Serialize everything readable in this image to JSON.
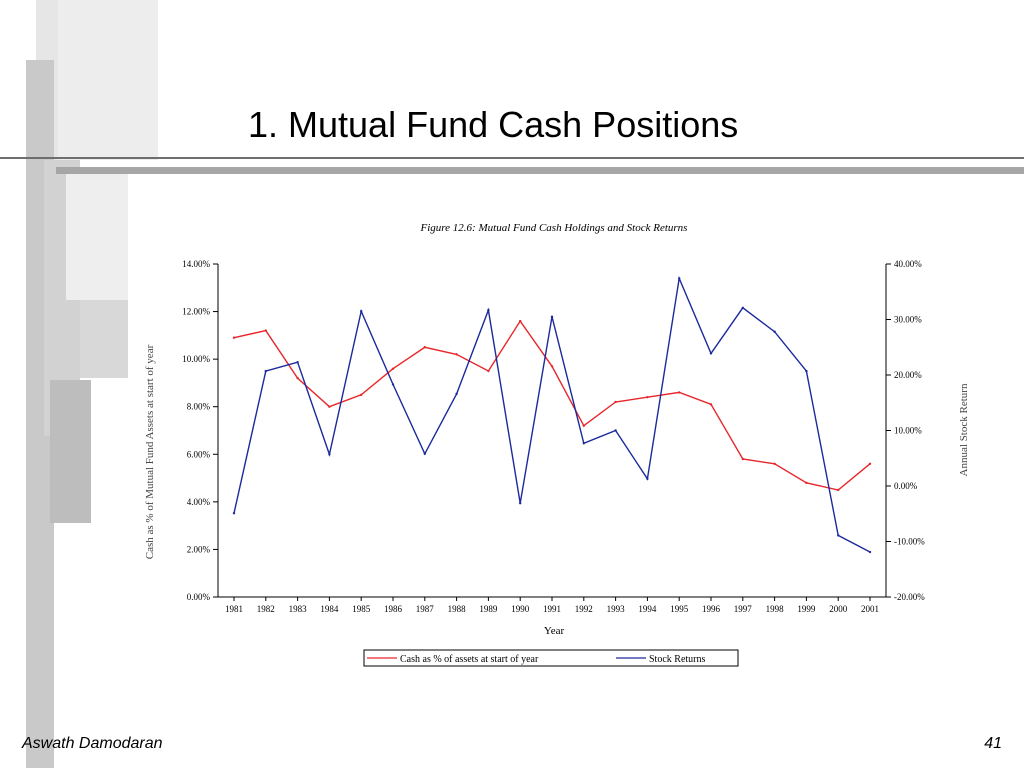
{
  "slide": {
    "title": "1. Mutual Fund Cash Positions",
    "footer_left": "Aswath Damodaran",
    "page_number": "41"
  },
  "colors": {
    "cash_series": "#e8262b",
    "returns_series": "#1c2a9c",
    "axis": "#000000",
    "decor_light": "#e3e3e3",
    "decor_mid": "#cdcdcd",
    "decor_dark": "#b4b4b4"
  },
  "chart_data": {
    "type": "line",
    "title": "Figure 12.6: Mutual Fund Cash Holdings and Stock Returns",
    "xlabel": "Year",
    "ylabel_left": "Cash as % of Mutual Fund Assets at start of year",
    "ylabel_right": "Annual Stock Return",
    "categories": [
      "1981",
      "1982",
      "1983",
      "1984",
      "1985",
      "1986",
      "1987",
      "1988",
      "1989",
      "1990",
      "1991",
      "1992",
      "1993",
      "1994",
      "1995",
      "1996",
      "1997",
      "1998",
      "1999",
      "2000",
      "2001"
    ],
    "x_tick_labels": [
      "1981",
      "1982",
      "1983",
      "1984",
      "1985",
      "1986",
      "1987",
      "1988",
      "1989",
      "1990",
      "1991",
      "1992",
      "1993",
      "1994",
      "1995",
      "1996",
      "1997",
      "1998",
      "1999",
      "2000",
      "2001"
    ],
    "y_left": {
      "min": 0,
      "max": 14,
      "step": 2,
      "tick_labels": [
        "0.00%",
        "2.00%",
        "4.00%",
        "6.00%",
        "8.00%",
        "10.00%",
        "12.00%",
        "14.00%"
      ]
    },
    "y_right": {
      "min": -20,
      "max": 40,
      "step": 10,
      "tick_labels": [
        "-20.00%",
        "-10.00%",
        "0.00%",
        "10.00%",
        "20.00%",
        "30.00%",
        "40.00%"
      ]
    },
    "series": [
      {
        "name": "Cash as % of assets at start of year",
        "axis": "left",
        "values": [
          10.9,
          11.2,
          9.2,
          8.0,
          8.5,
          9.6,
          10.5,
          10.2,
          9.5,
          11.6,
          9.7,
          7.2,
          8.2,
          8.4,
          8.6,
          8.1,
          5.8,
          5.6,
          4.8,
          4.5,
          5.6
        ]
      },
      {
        "name": "Stock Returns",
        "axis": "right",
        "values": [
          -4.9,
          20.7,
          22.3,
          5.7,
          31.5,
          18.3,
          5.8,
          16.6,
          31.7,
          -3.1,
          30.5,
          7.7,
          10.0,
          1.3,
          37.4,
          23.9,
          32.1,
          27.8,
          20.7,
          -8.9,
          -11.9
        ]
      }
    ],
    "legend": {
      "position": "bottom-center",
      "entries": [
        "Cash as % of assets at start of year",
        "Stock Returns"
      ]
    },
    "grid": false
  }
}
